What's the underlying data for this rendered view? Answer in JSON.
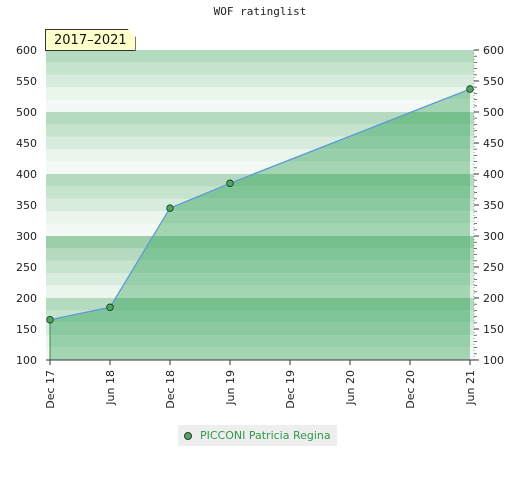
{
  "chart_data": {
    "type": "area",
    "title": "WOF ratinglist",
    "period_label": "2017–2021",
    "ylim": [
      100,
      600
    ],
    "y_ticks": [
      100,
      150,
      200,
      250,
      300,
      350,
      400,
      450,
      500,
      550,
      600
    ],
    "y_tick_labels": [
      "100",
      "150",
      "200",
      "250",
      "300",
      "350",
      "400",
      "450",
      "500",
      "550",
      "600"
    ],
    "x_tick_labels": [
      "Dec 17",
      "Jun 18",
      "Dec 18",
      "Jun 19",
      "Dec 19",
      "Jun 20",
      "Dec 20",
      "Jun 21"
    ],
    "grid": true,
    "legend_position": "bottom",
    "series": [
      {
        "name": "PICCONI Patricia Regina",
        "x": [
          "Dec 17",
          "Jun 18",
          "Dec 18",
          "Jun 19",
          "Jun 21"
        ],
        "values": [
          165,
          185,
          345,
          385,
          537
        ]
      }
    ],
    "colors": {
      "line": "#5b9bd5",
      "area": "#5bb878",
      "marker": "#4ca860",
      "band_light": "#f1f8f2",
      "band_dark": "#7ec596"
    }
  }
}
